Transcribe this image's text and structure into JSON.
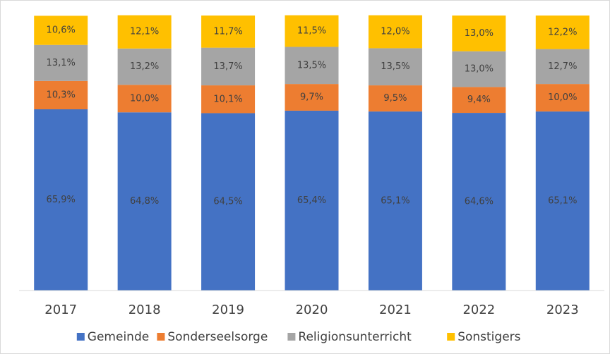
{
  "chart_data": {
    "type": "stacked_bar",
    "categories": [
      "2017",
      "2018",
      "2019",
      "2020",
      "2021",
      "2022",
      "2023"
    ],
    "ylim": [
      0,
      100
    ],
    "series": [
      {
        "name": "Gemeinde",
        "color": "#4472c4",
        "values": [
          65.9,
          64.8,
          64.5,
          65.4,
          65.1,
          64.6,
          65.1
        ],
        "value_labels": [
          "65,9%",
          "64,8%",
          "64,5%",
          "65,4%",
          "65,1%",
          "64,6%",
          "65,1%"
        ]
      },
      {
        "name": "Sonderseelsorge",
        "color": "#ed7d31",
        "values": [
          10.3,
          10.0,
          10.1,
          9.7,
          9.5,
          9.4,
          10.0
        ],
        "value_labels": [
          "10,3%",
          "10,0%",
          "10,1%",
          "9,7%",
          "9,5%",
          "9,4%",
          "10,0%"
        ]
      },
      {
        "name": "Religionsunterricht",
        "color": "#a5a5a5",
        "values": [
          13.1,
          13.2,
          13.7,
          13.5,
          13.5,
          13.0,
          12.7
        ],
        "value_labels": [
          "13,1%",
          "13,2%",
          "13,7%",
          "13,5%",
          "13,5%",
          "13,0%",
          "12,7%"
        ]
      },
      {
        "name": "Sonstigers",
        "color": "#ffc000",
        "values": [
          10.6,
          12.1,
          11.7,
          11.5,
          12.0,
          13.0,
          12.2
        ],
        "value_labels": [
          "10,6%",
          "12,1%",
          "11,7%",
          "11,5%",
          "12,0%",
          "13,0%",
          "12,2%"
        ]
      }
    ],
    "legend": "bottom"
  }
}
